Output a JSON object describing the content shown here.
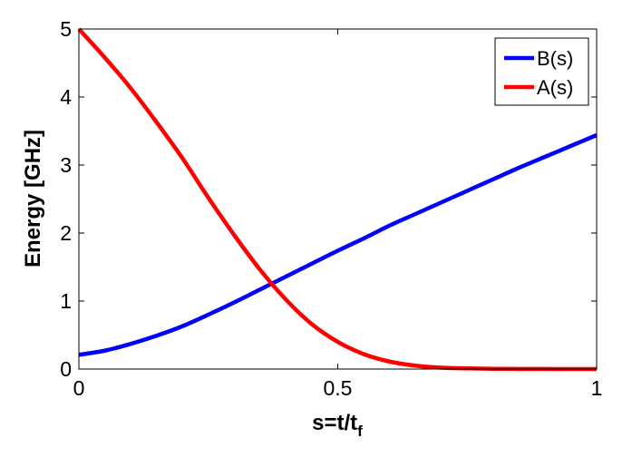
{
  "chart_data": {
    "type": "line",
    "title": "",
    "xlabel": "s=t/t",
    "xlabel_subscript": "f",
    "ylabel": "Energy [GHz]",
    "xlim": [
      0,
      1
    ],
    "ylim": [
      0,
      5
    ],
    "x_ticks": [
      "0",
      "0.5",
      "1"
    ],
    "y_ticks": [
      "0",
      "1",
      "2",
      "3",
      "4",
      "5"
    ],
    "grid": false,
    "legend_position": "top-right",
    "x": [
      0,
      0.05,
      0.1,
      0.15,
      0.2,
      0.25,
      0.3,
      0.35,
      0.4,
      0.45,
      0.5,
      0.55,
      0.6,
      0.65,
      0.7,
      0.75,
      0.8,
      0.85,
      0.9,
      0.95,
      1.0
    ],
    "series": [
      {
        "name": "B(s)",
        "color": "#0000ff",
        "values": [
          0.21,
          0.27,
          0.37,
          0.49,
          0.63,
          0.8,
          0.98,
          1.17,
          1.36,
          1.55,
          1.74,
          1.92,
          2.11,
          2.28,
          2.45,
          2.62,
          2.79,
          2.96,
          3.12,
          3.28,
          3.44
        ]
      },
      {
        "name": "A(s)",
        "color": "#ff0000",
        "values": [
          5.0,
          4.58,
          4.13,
          3.63,
          3.1,
          2.52,
          1.97,
          1.46,
          1.02,
          0.66,
          0.4,
          0.22,
          0.11,
          0.05,
          0.02,
          0.01,
          0.004,
          0.002,
          0.001,
          0.0005,
          0.0
        ]
      }
    ]
  }
}
